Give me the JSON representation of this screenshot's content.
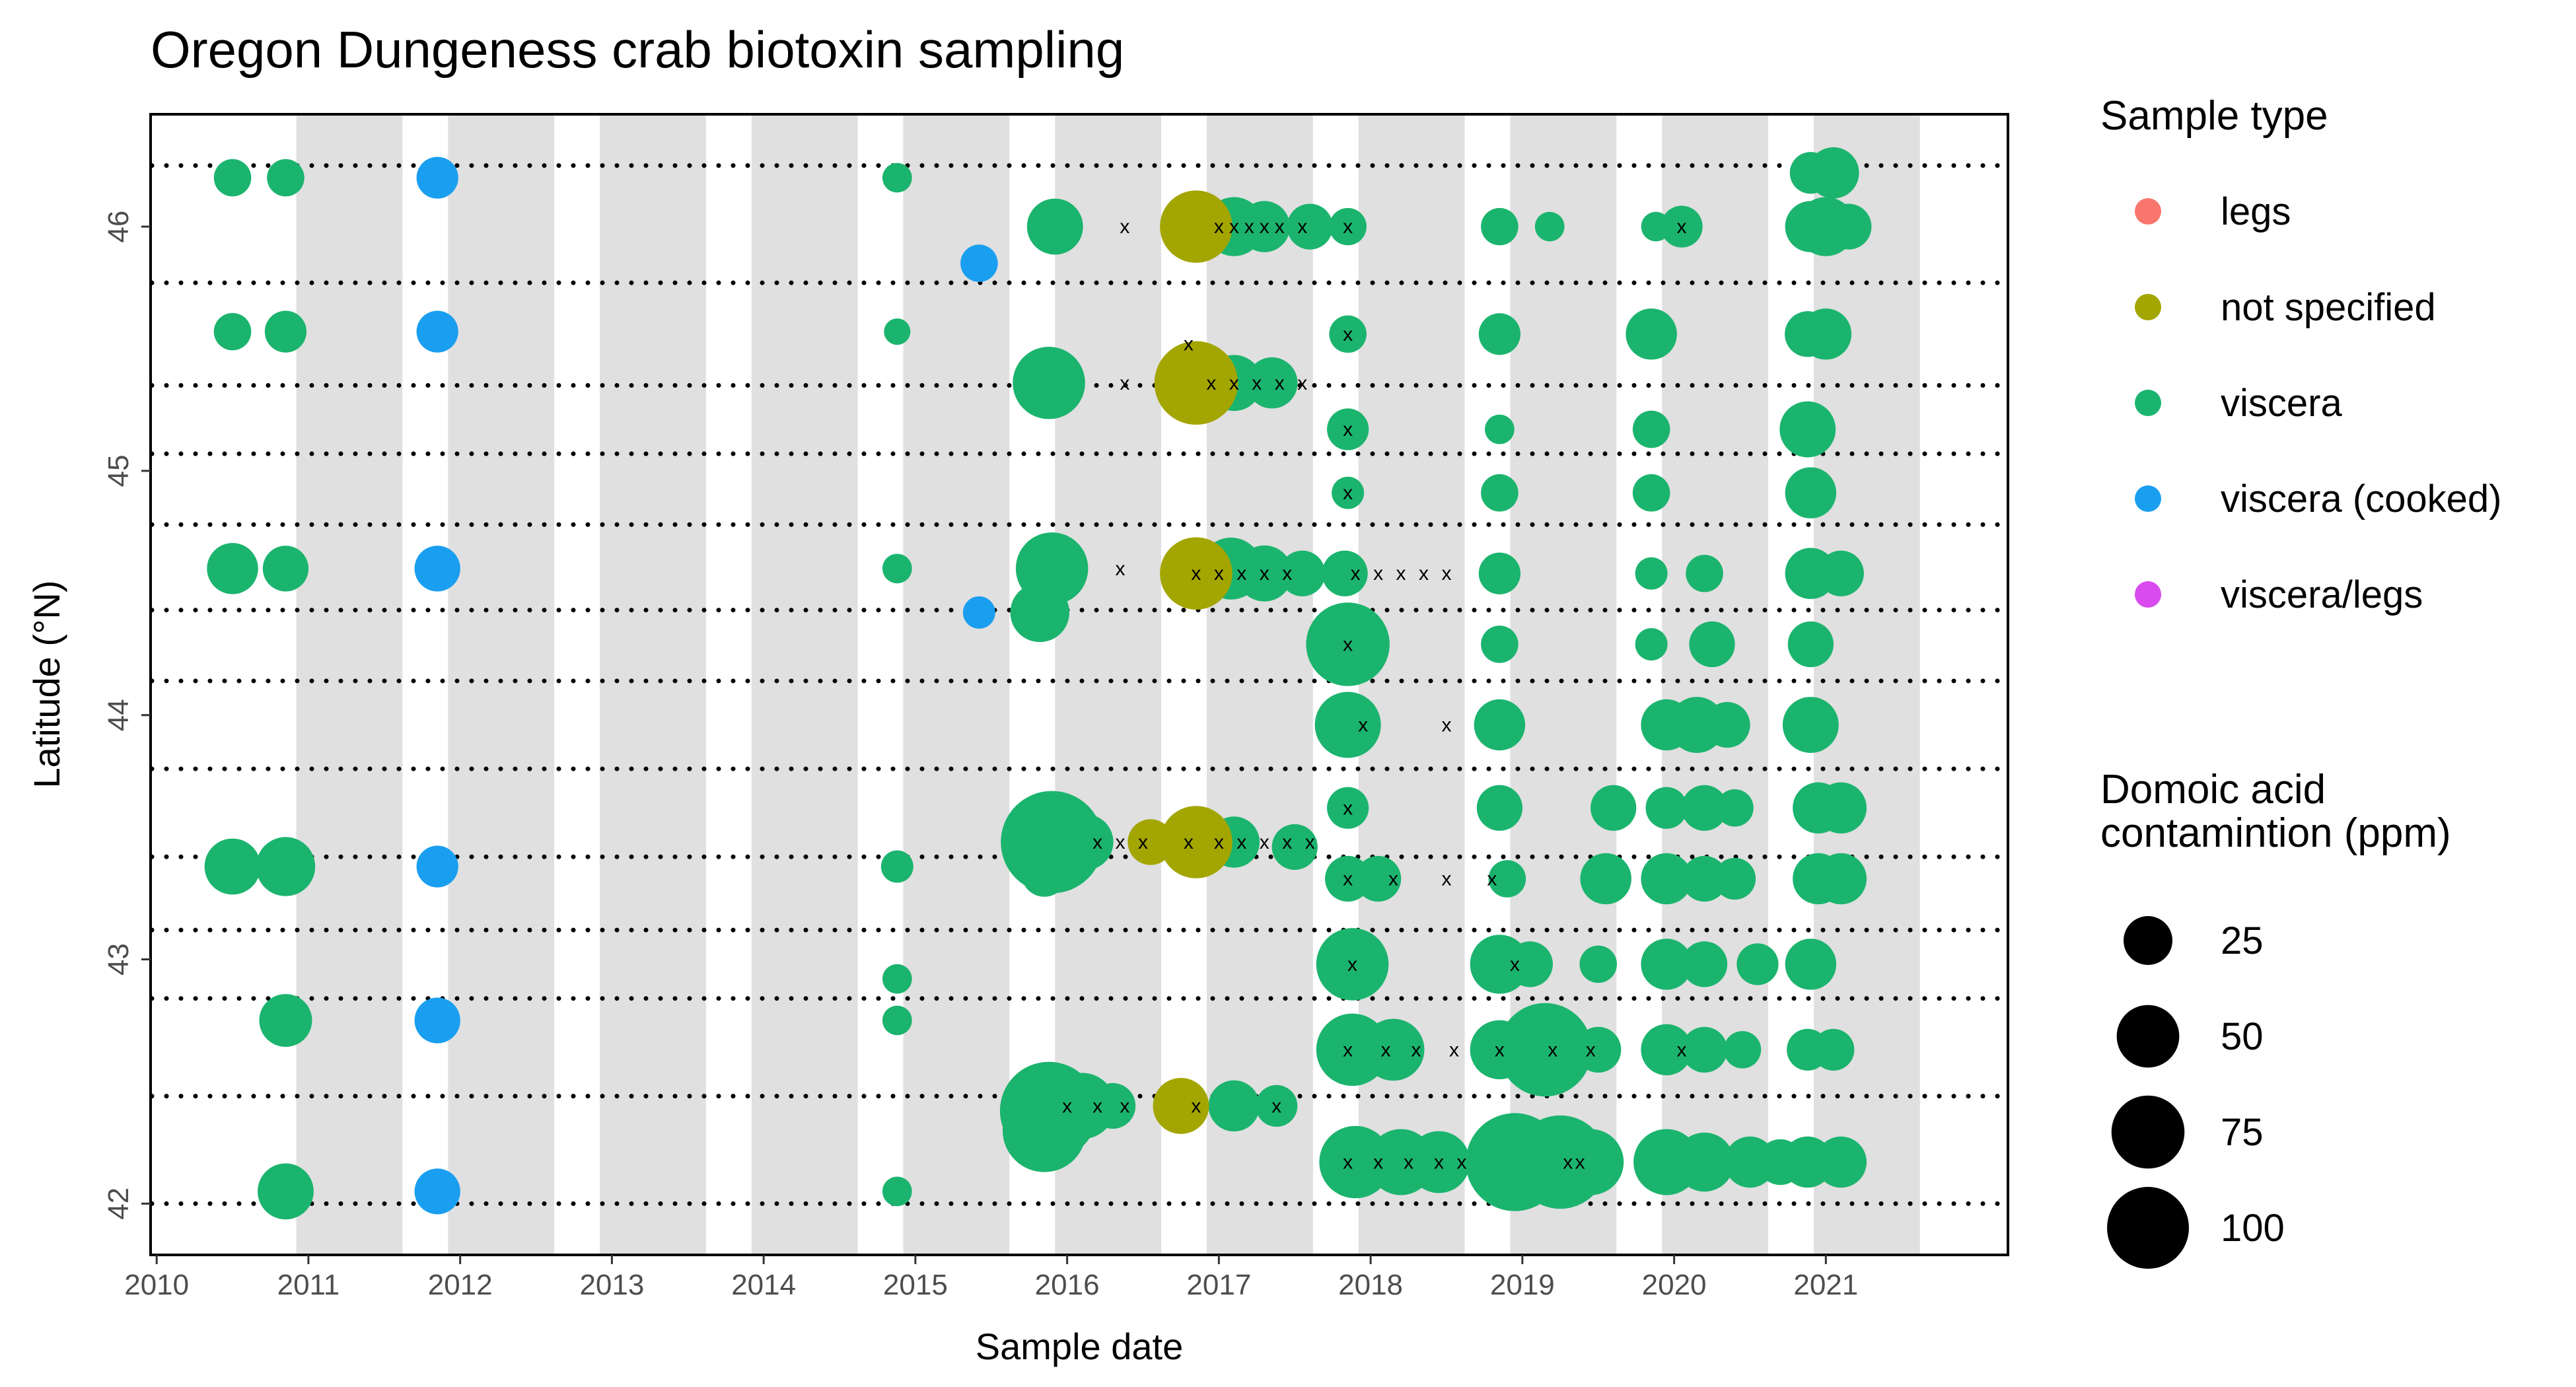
{
  "chart_data": {
    "type": "scatter",
    "title": "Oregon Dungeness crab biotoxin sampling",
    "xlabel": "Sample date",
    "ylabel": "Latitude (°N)",
    "x_ticks": [
      "2010",
      "2011",
      "2012",
      "2013",
      "2014",
      "2015",
      "2016",
      "2017",
      "2018",
      "2019",
      "2020",
      "2021"
    ],
    "y_ticks": [
      42,
      43,
      44,
      45,
      46
    ],
    "xlim": [
      2009.96,
      2022.2
    ],
    "ylim": [
      41.79,
      46.46
    ],
    "grid": false,
    "shaded_periods": [
      [
        2010.92,
        2011.62
      ],
      [
        2011.92,
        2012.62
      ],
      [
        2012.92,
        2013.62
      ],
      [
        2013.92,
        2014.62
      ],
      [
        2014.92,
        2015.62
      ],
      [
        2015.92,
        2016.62
      ],
      [
        2016.92,
        2017.62
      ],
      [
        2017.92,
        2018.62
      ],
      [
        2018.92,
        2019.62
      ],
      [
        2019.92,
        2020.62
      ],
      [
        2020.92,
        2021.62
      ]
    ],
    "reference_latitudes": [
      42.0,
      42.44,
      42.84,
      43.12,
      43.42,
      43.78,
      44.14,
      44.43,
      44.78,
      45.07,
      45.35,
      45.77,
      46.25
    ],
    "legend_color": {
      "title": "Sample type",
      "placement": "right",
      "entries": [
        {
          "label": "legs",
          "color": "#F8766D"
        },
        {
          "label": "not specified",
          "color": "#A3A500"
        },
        {
          "label": "viscera",
          "color": "#1BB46E"
        },
        {
          "label": "viscera (cooked)",
          "color": "#1A9FF0"
        },
        {
          "label": "viscera/legs",
          "color": "#D94AEF"
        }
      ]
    },
    "legend_size": {
      "title_lines": [
        "Domoic acid",
        "contamintion (ppm)"
      ],
      "placement": "right",
      "entries": [
        25,
        50,
        75,
        100
      ]
    },
    "series": [
      {
        "type": "viscera",
        "points": [
          [
            2010.5,
            46.2,
            8
          ],
          [
            2010.5,
            45.57,
            8
          ],
          [
            2010.5,
            44.6,
            15
          ],
          [
            2010.5,
            43.38,
            18
          ],
          [
            2010.85,
            46.2,
            8
          ],
          [
            2010.85,
            45.57,
            10
          ],
          [
            2010.85,
            44.6,
            12
          ],
          [
            2010.85,
            43.38,
            20
          ],
          [
            2010.85,
            42.75,
            16
          ],
          [
            2010.85,
            42.05,
            18
          ],
          [
            2014.88,
            46.2,
            5
          ],
          [
            2014.88,
            45.57,
            4
          ],
          [
            2014.88,
            44.6,
            5
          ],
          [
            2014.88,
            43.38,
            6
          ],
          [
            2014.88,
            42.92,
            5
          ],
          [
            2014.88,
            42.75,
            5
          ],
          [
            2014.88,
            42.05,
            5
          ],
          [
            2015.82,
            44.42,
            20
          ],
          [
            2015.9,
            44.6,
            30
          ],
          [
            2015.92,
            46.0,
            18
          ],
          [
            2015.88,
            45.36,
            30
          ],
          [
            2015.9,
            43.48,
            60
          ],
          [
            2015.85,
            43.35,
            12
          ],
          [
            2015.88,
            42.38,
            55
          ],
          [
            2015.85,
            42.3,
            40
          ],
          [
            2016.12,
            43.48,
            18
          ],
          [
            2016.1,
            42.4,
            25
          ],
          [
            2016.3,
            42.4,
            12
          ],
          [
            2017.1,
            46.0,
            20
          ],
          [
            2017.3,
            46.0,
            15
          ],
          [
            2017.6,
            46.0,
            12
          ],
          [
            2017.1,
            45.36,
            18
          ],
          [
            2017.35,
            45.36,
            15
          ],
          [
            2017.08,
            44.6,
            22
          ],
          [
            2017.3,
            44.58,
            18
          ],
          [
            2017.55,
            44.58,
            12
          ],
          [
            2017.1,
            43.48,
            15
          ],
          [
            2017.5,
            43.46,
            12
          ],
          [
            2017.1,
            42.4,
            15
          ],
          [
            2017.38,
            42.4,
            10
          ],
          [
            2017.85,
            46.0,
            8
          ],
          [
            2017.85,
            45.56,
            8
          ],
          [
            2017.85,
            45.17,
            10
          ],
          [
            2017.85,
            44.91,
            6
          ],
          [
            2017.83,
            44.58,
            12
          ],
          [
            2017.85,
            44.29,
            40
          ],
          [
            2017.85,
            43.96,
            25
          ],
          [
            2017.85,
            43.62,
            10
          ],
          [
            2017.85,
            43.33,
            12
          ],
          [
            2018.05,
            43.33,
            12
          ],
          [
            2017.88,
            42.98,
            30
          ],
          [
            2017.88,
            42.63,
            30
          ],
          [
            2018.15,
            42.63,
            22
          ],
          [
            2017.9,
            42.17,
            30
          ],
          [
            2018.2,
            42.17,
            25
          ],
          [
            2018.45,
            42.17,
            22
          ],
          [
            2018.85,
            46.0,
            8
          ],
          [
            2019.18,
            46.0,
            5
          ],
          [
            2018.85,
            45.56,
            10
          ],
          [
            2018.85,
            45.17,
            5
          ],
          [
            2018.85,
            44.91,
            8
          ],
          [
            2018.85,
            44.58,
            10
          ],
          [
            2018.85,
            44.29,
            8
          ],
          [
            2018.85,
            43.96,
            15
          ],
          [
            2018.85,
            43.62,
            12
          ],
          [
            2018.9,
            43.33,
            8
          ],
          [
            2018.85,
            42.98,
            20
          ],
          [
            2019.05,
            42.98,
            12
          ],
          [
            2018.85,
            42.63,
            20
          ],
          [
            2019.15,
            42.63,
            50
          ],
          [
            2019.5,
            42.63,
            12
          ],
          [
            2018.95,
            42.17,
            55
          ],
          [
            2019.25,
            42.17,
            50
          ],
          [
            2019.45,
            42.17,
            25
          ],
          [
            2019.6,
            43.62,
            12
          ],
          [
            2019.55,
            43.33,
            15
          ],
          [
            2019.5,
            42.98,
            8
          ],
          [
            2019.88,
            46.0,
            5
          ],
          [
            2020.05,
            46.0,
            10
          ],
          [
            2019.85,
            45.56,
            15
          ],
          [
            2019.85,
            45.17,
            8
          ],
          [
            2019.85,
            44.91,
            8
          ],
          [
            2019.85,
            44.58,
            6
          ],
          [
            2019.85,
            44.29,
            6
          ],
          [
            2019.95,
            43.96,
            15
          ],
          [
            2020.15,
            43.96,
            18
          ],
          [
            2020.35,
            43.96,
            12
          ],
          [
            2019.95,
            43.62,
            10
          ],
          [
            2020.2,
            43.62,
            12
          ],
          [
            2020.4,
            43.62,
            8
          ],
          [
            2019.95,
            43.33,
            15
          ],
          [
            2020.2,
            43.33,
            12
          ],
          [
            2020.4,
            43.33,
            10
          ],
          [
            2019.95,
            42.98,
            15
          ],
          [
            2020.2,
            42.98,
            12
          ],
          [
            2020.55,
            42.98,
            10
          ],
          [
            2019.95,
            42.63,
            15
          ],
          [
            2020.2,
            42.63,
            12
          ],
          [
            2020.45,
            42.63,
            8
          ],
          [
            2019.95,
            42.17,
            25
          ],
          [
            2020.2,
            42.17,
            20
          ],
          [
            2020.5,
            42.17,
            15
          ],
          [
            2020.7,
            42.17,
            12
          ],
          [
            2020.2,
            44.58,
            8
          ],
          [
            2020.25,
            44.29,
            12
          ],
          [
            2020.9,
            46.22,
            10
          ],
          [
            2021.05,
            46.22,
            15
          ],
          [
            2020.9,
            46.0,
            15
          ],
          [
            2021.0,
            46.0,
            20
          ],
          [
            2021.15,
            46.0,
            12
          ],
          [
            2020.88,
            45.56,
            12
          ],
          [
            2021.0,
            45.56,
            15
          ],
          [
            2020.88,
            45.17,
            18
          ],
          [
            2020.9,
            44.91,
            15
          ],
          [
            2020.9,
            44.58,
            15
          ],
          [
            2021.1,
            44.58,
            12
          ],
          [
            2020.9,
            44.29,
            12
          ],
          [
            2020.9,
            43.96,
            18
          ],
          [
            2020.95,
            43.62,
            15
          ],
          [
            2021.1,
            43.62,
            15
          ],
          [
            2020.95,
            43.33,
            15
          ],
          [
            2021.1,
            43.33,
            15
          ],
          [
            2020.9,
            42.98,
            15
          ],
          [
            2020.88,
            42.63,
            10
          ],
          [
            2021.05,
            42.63,
            10
          ],
          [
            2020.88,
            42.17,
            15
          ],
          [
            2021.1,
            42.17,
            15
          ]
        ]
      },
      {
        "type": "viscera (cooked)",
        "points": [
          [
            2011.85,
            46.2,
            10
          ],
          [
            2011.85,
            45.57,
            10
          ],
          [
            2011.85,
            44.6,
            12
          ],
          [
            2011.85,
            43.38,
            10
          ],
          [
            2011.85,
            42.75,
            12
          ],
          [
            2011.85,
            42.05,
            12
          ],
          [
            2015.42,
            45.85,
            8
          ],
          [
            2015.42,
            44.42,
            6
          ]
        ]
      },
      {
        "type": "not specified",
        "points": [
          [
            2016.85,
            46.0,
            30
          ],
          [
            2016.85,
            45.36,
            40
          ],
          [
            2016.85,
            44.58,
            30
          ],
          [
            2016.85,
            43.48,
            30
          ],
          [
            2016.55,
            43.48,
            12
          ],
          [
            2016.75,
            42.4,
            18
          ]
        ]
      }
    ],
    "x_marks": [
      [
        2016.38,
        46.0
      ],
      [
        2016.38,
        45.36
      ],
      [
        2016.35,
        44.6
      ],
      [
        2016.2,
        43.48
      ],
      [
        2016.35,
        43.48
      ],
      [
        2016.5,
        43.48
      ],
      [
        2016.0,
        42.4
      ],
      [
        2016.2,
        42.4
      ],
      [
        2016.38,
        42.4
      ],
      [
        2016.8,
        45.52
      ],
      [
        2017.0,
        46.0
      ],
      [
        2017.1,
        46.0
      ],
      [
        2017.2,
        46.0
      ],
      [
        2017.3,
        46.0
      ],
      [
        2017.4,
        46.0
      ],
      [
        2017.55,
        46.0
      ],
      [
        2016.95,
        45.36
      ],
      [
        2017.1,
        45.36
      ],
      [
        2017.25,
        45.36
      ],
      [
        2017.4,
        45.36
      ],
      [
        2017.55,
        45.36
      ],
      [
        2016.85,
        44.58
      ],
      [
        2017.0,
        44.58
      ],
      [
        2017.15,
        44.58
      ],
      [
        2017.3,
        44.58
      ],
      [
        2017.45,
        44.58
      ],
      [
        2016.8,
        43.48
      ],
      [
        2017.0,
        43.48
      ],
      [
        2017.15,
        43.48
      ],
      [
        2017.3,
        43.48
      ],
      [
        2017.45,
        43.48
      ],
      [
        2017.6,
        43.48
      ],
      [
        2016.85,
        42.4
      ],
      [
        2017.38,
        42.4
      ],
      [
        2017.85,
        46.0
      ],
      [
        2017.85,
        45.56
      ],
      [
        2017.85,
        45.17
      ],
      [
        2017.85,
        44.91
      ],
      [
        2017.9,
        44.58
      ],
      [
        2018.05,
        44.58
      ],
      [
        2018.2,
        44.58
      ],
      [
        2018.35,
        44.58
      ],
      [
        2018.5,
        44.58
      ],
      [
        2017.85,
        44.29
      ],
      [
        2017.95,
        43.96
      ],
      [
        2018.5,
        43.96
      ],
      [
        2017.85,
        43.62
      ],
      [
        2017.85,
        43.33
      ],
      [
        2018.15,
        43.33
      ],
      [
        2018.5,
        43.33
      ],
      [
        2018.8,
        43.33
      ],
      [
        2017.88,
        42.98
      ],
      [
        2018.95,
        42.98
      ],
      [
        2017.85,
        42.63
      ],
      [
        2018.1,
        42.63
      ],
      [
        2018.3,
        42.63
      ],
      [
        2018.55,
        42.63
      ],
      [
        2018.85,
        42.63
      ],
      [
        2019.2,
        42.63
      ],
      [
        2019.45,
        42.63
      ],
      [
        2017.85,
        42.17
      ],
      [
        2018.05,
        42.17
      ],
      [
        2018.25,
        42.17
      ],
      [
        2018.45,
        42.17
      ],
      [
        2018.6,
        42.17
      ],
      [
        2019.3,
        42.17
      ],
      [
        2019.38,
        42.17
      ],
      [
        2020.05,
        46.0
      ],
      [
        2020.05,
        42.63
      ]
    ]
  }
}
